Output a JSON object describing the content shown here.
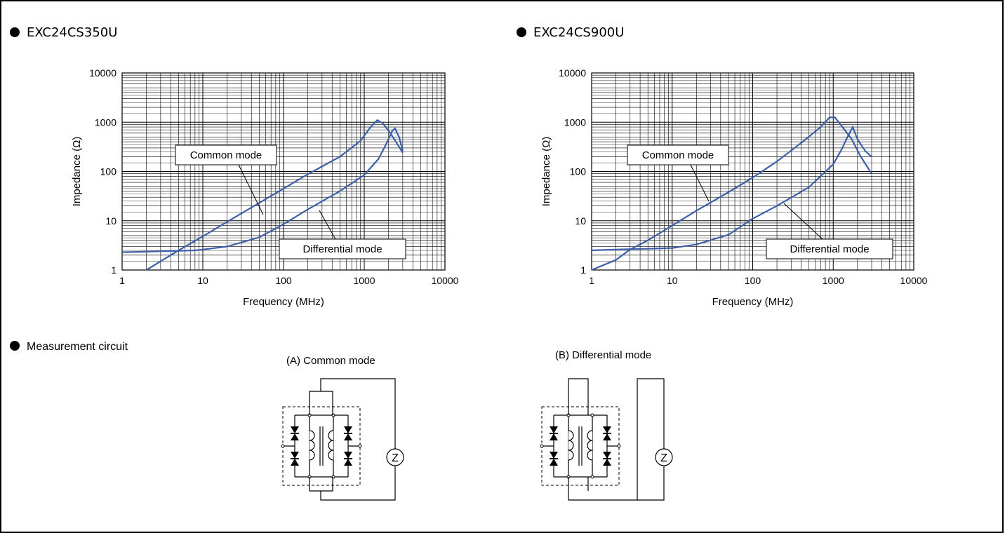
{
  "headings": {
    "left_part": "EXC24CS350U",
    "right_part": "EXC24CS900U",
    "measurement": "Measurement circuit"
  },
  "circuits": {
    "common_title": "(A) Common mode",
    "differential_title": "(B) Differential mode",
    "meter_label": "Z"
  },
  "colors": {
    "curve": "#3d5fa8",
    "grid": "#000000"
  },
  "chart_data": [
    {
      "type": "line",
      "xlabel": "Frequency (MHz)",
      "ylabel": "Impedance (Ω)",
      "x_scale": "log",
      "y_scale": "log",
      "xlim": [
        1,
        10000
      ],
      "ylim": [
        1,
        10000
      ],
      "x_ticks": [
        "1",
        "10",
        "100",
        "1000",
        "10000"
      ],
      "y_ticks": [
        "1",
        "10",
        "100",
        "1000",
        "10000"
      ],
      "grid": true,
      "annotations": [
        "Common mode",
        "Differential mode"
      ],
      "series": [
        {
          "name": "Common mode",
          "x": [
            2,
            3,
            5,
            10,
            20,
            50,
            100,
            200,
            500,
            900,
            1200,
            1450,
            1700,
            2100,
            2600,
            3000
          ],
          "y": [
            1.0,
            1.5,
            2.5,
            4.8,
            9.5,
            23,
            45,
            88,
            200,
            420,
            800,
            1100,
            950,
            600,
            350,
            240
          ]
        },
        {
          "name": "Differential mode",
          "x": [
            1,
            2,
            3,
            5,
            8,
            10,
            20,
            50,
            100,
            200,
            500,
            1000,
            1500,
            1900,
            2200,
            2400,
            2700,
            3000
          ],
          "y": [
            2.3,
            2.35,
            2.4,
            2.45,
            2.5,
            2.6,
            3.0,
            4.6,
            8.5,
            17,
            40,
            85,
            180,
            380,
            650,
            750,
            500,
            260
          ]
        }
      ]
    },
    {
      "type": "line",
      "xlabel": "Frequency (MHz)",
      "ylabel": "Impedance (Ω)",
      "x_scale": "log",
      "y_scale": "log",
      "xlim": [
        1,
        10000
      ],
      "ylim": [
        1,
        10000
      ],
      "x_ticks": [
        "1",
        "10",
        "100",
        "1000",
        "10000"
      ],
      "y_ticks": [
        "1",
        "10",
        "100",
        "1000",
        "10000"
      ],
      "grid": true,
      "annotations": [
        "Common mode",
        "Differential mode"
      ],
      "series": [
        {
          "name": "Common mode",
          "x": [
            1,
            2,
            3,
            5,
            10,
            20,
            50,
            100,
            200,
            400,
            700,
            900,
            1050,
            1300,
            1700,
            2200,
            3000
          ],
          "y": [
            1.0,
            1.6,
            2.6,
            4.0,
            8.0,
            16,
            38,
            75,
            160,
            380,
            800,
            1250,
            1250,
            800,
            450,
            200,
            90
          ]
        },
        {
          "name": "Differential mode",
          "x": [
            1,
            2,
            3,
            5,
            10,
            20,
            50,
            100,
            200,
            500,
            1000,
            1300,
            1500,
            1750,
            2000,
            2500,
            3000
          ],
          "y": [
            2.5,
            2.6,
            2.65,
            2.7,
            2.8,
            3.3,
            5.2,
            11,
            20,
            48,
            140,
            300,
            500,
            800,
            450,
            260,
            200
          ]
        }
      ]
    }
  ]
}
